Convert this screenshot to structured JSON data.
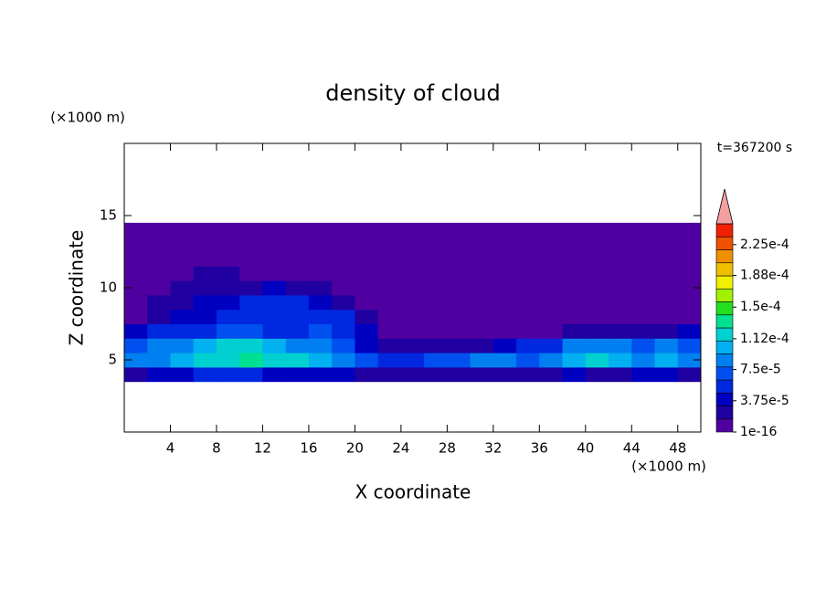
{
  "chart_data": {
    "type": "heatmap",
    "title": "density of cloud",
    "x_label": "X coordinate",
    "y_label": "Z coordinate",
    "x_unit": "(×1000 m)",
    "y_unit": "(×1000 m)",
    "annotation": "t=367200 s",
    "xlim": [
      0,
      50
    ],
    "ylim": [
      0,
      20
    ],
    "xticks": [
      4,
      8,
      12,
      16,
      20,
      24,
      28,
      32,
      36,
      40,
      44,
      48
    ],
    "yticks": [
      5,
      10,
      15
    ],
    "xbins": [
      0,
      2,
      4,
      6,
      8,
      10,
      12,
      14,
      16,
      18,
      20,
      22,
      24,
      26,
      28,
      30,
      32,
      34,
      36,
      38,
      40,
      42,
      44,
      46,
      48,
      50
    ],
    "ybins": [
      3.5,
      4.5,
      5.5,
      6.5,
      7.5,
      8.5,
      9.5,
      10.5,
      11.5,
      12.5,
      13.5,
      14.5
    ],
    "values": [
      [
        3e-05,
        4e-05,
        4e-05,
        5e-05,
        5e-05,
        5e-05,
        4e-05,
        4e-05,
        4e-05,
        4e-05,
        3e-05,
        2e-05,
        3e-05,
        3e-05,
        3e-05,
        3e-05,
        3e-05,
        2e-05,
        3e-05,
        4e-05,
        3e-05,
        2e-05,
        4e-05,
        4e-05,
        3e-05
      ],
      [
        8e-05,
        9e-05,
        0.0001,
        0.00011,
        0.00012,
        0.00013,
        0.00012,
        0.00011,
        0.0001,
        9e-05,
        7e-05,
        5e-05,
        6e-05,
        7e-05,
        7e-05,
        8e-05,
        8e-05,
        7e-05,
        8e-05,
        0.0001,
        0.00011,
        0.0001,
        9e-05,
        0.0001,
        9e-05
      ],
      [
        7e-05,
        8e-05,
        9e-05,
        0.0001,
        0.00012,
        0.00011,
        0.0001,
        9e-05,
        8e-05,
        7e-05,
        4e-05,
        2e-05,
        2e-05,
        2e-05,
        3e-05,
        3e-05,
        4e-05,
        5e-05,
        6e-05,
        8e-05,
        9e-05,
        8e-05,
        7e-05,
        8e-05,
        7e-05
      ],
      [
        4e-05,
        5e-05,
        6e-05,
        6e-05,
        7e-05,
        7e-05,
        6e-05,
        6e-05,
        7e-05,
        6e-05,
        4e-05,
        1e-05,
        1e-05,
        1e-05,
        1e-05,
        1e-05,
        1e-05,
        1e-05,
        1e-05,
        2e-05,
        3e-05,
        2e-05,
        2e-05,
        3e-05,
        4e-05
      ],
      [
        1e-05,
        3e-05,
        4e-05,
        4e-05,
        5e-05,
        6e-05,
        6e-05,
        6e-05,
        5e-05,
        5e-05,
        3e-05,
        1e-05,
        5e-06,
        5e-06,
        5e-06,
        5e-06,
        5e-06,
        5e-06,
        5e-06,
        5e-06,
        5e-06,
        5e-06,
        5e-06,
        5e-06,
        5e-06
      ],
      [
        5e-06,
        2e-05,
        3e-05,
        4e-05,
        4e-05,
        5e-05,
        5e-05,
        5e-05,
        4e-05,
        3e-05,
        1e-05,
        5e-06,
        5e-06,
        5e-06,
        5e-06,
        5e-06,
        5e-06,
        5e-06,
        5e-06,
        5e-06,
        5e-06,
        5e-06,
        5e-06,
        5e-06,
        5e-06
      ],
      [
        5e-06,
        5e-06,
        2e-05,
        3e-05,
        2e-05,
        3e-05,
        4e-05,
        3e-05,
        2e-05,
        1e-05,
        5e-06,
        5e-06,
        5e-06,
        5e-06,
        5e-06,
        5e-06,
        5e-06,
        5e-06,
        5e-06,
        5e-06,
        5e-06,
        5e-06,
        5e-06,
        5e-06,
        5e-06
      ],
      [
        5e-06,
        5e-06,
        1e-05,
        2e-05,
        2e-05,
        1e-05,
        5e-06,
        5e-06,
        5e-06,
        5e-06,
        5e-06,
        5e-06,
        5e-06,
        5e-06,
        5e-06,
        5e-06,
        5e-06,
        5e-06,
        5e-06,
        5e-06,
        5e-06,
        5e-06,
        5e-06,
        5e-06,
        5e-06
      ],
      [
        5e-06,
        5e-06,
        5e-06,
        5e-06,
        5e-06,
        5e-06,
        5e-06,
        5e-06,
        5e-06,
        5e-06,
        5e-06,
        5e-06,
        5e-06,
        5e-06,
        5e-06,
        5e-06,
        5e-06,
        5e-06,
        5e-06,
        5e-06,
        5e-06,
        5e-06,
        5e-06,
        5e-06,
        5e-06
      ],
      [
        5e-06,
        5e-06,
        5e-06,
        5e-06,
        5e-06,
        5e-06,
        5e-06,
        5e-06,
        5e-06,
        5e-06,
        5e-06,
        5e-06,
        5e-06,
        5e-06,
        5e-06,
        5e-06,
        5e-06,
        5e-06,
        5e-06,
        5e-06,
        5e-06,
        5e-06,
        5e-06,
        5e-06,
        5e-06
      ],
      [
        5e-06,
        5e-06,
        5e-06,
        5e-06,
        5e-06,
        5e-06,
        5e-06,
        5e-06,
        5e-06,
        5e-06,
        5e-06,
        5e-06,
        5e-06,
        5e-06,
        5e-06,
        5e-06,
        5e-06,
        5e-06,
        5e-06,
        5e-06,
        5e-06,
        5e-06,
        5e-06,
        5e-06,
        5e-06
      ]
    ],
    "colorbar": {
      "lim": [
        1e-16,
        0.00025
      ],
      "ticks": [
        {
          "value": 1e-16,
          "label": "1e-16"
        },
        {
          "value": 3.75e-05,
          "label": "3.75e-5"
        },
        {
          "value": 7.5e-05,
          "label": "7.5e-5"
        },
        {
          "value": 0.000112,
          "label": "1.12e-4"
        },
        {
          "value": 0.00015,
          "label": "1.5e-4"
        },
        {
          "value": 0.000188,
          "label": "1.88e-4"
        },
        {
          "value": 0.000225,
          "label": "2.25e-4"
        }
      ],
      "colors": [
        "#5000a0",
        "#2000a0",
        "#0000c0",
        "#0028e0",
        "#0050f0",
        "#0080f0",
        "#00b0f0",
        "#00d0d0",
        "#00e090",
        "#20e020",
        "#a0f000",
        "#f0f000",
        "#f0c000",
        "#f09000",
        "#f05000",
        "#f02000"
      ]
    }
  }
}
